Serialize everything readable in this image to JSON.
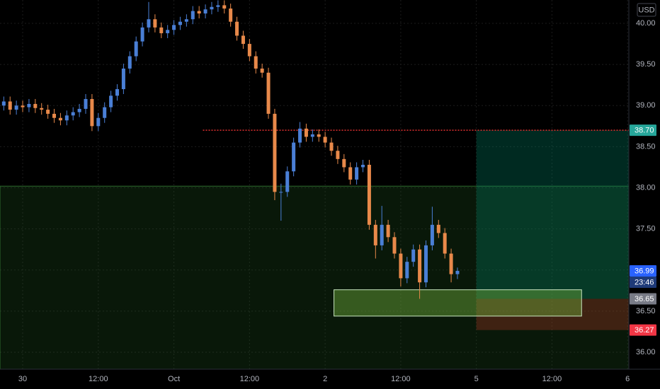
{
  "chart_data": {
    "type": "candlestick",
    "currency": "USD",
    "x": [
      -3,
      -2,
      -1,
      0,
      1,
      2,
      3,
      4,
      5,
      6,
      7,
      8,
      9,
      10,
      11,
      12,
      13,
      14,
      15,
      16,
      17,
      18,
      19,
      20,
      21,
      22,
      23,
      24,
      25,
      26,
      27,
      28,
      29,
      30,
      31,
      32,
      33,
      34,
      35,
      36,
      37,
      38,
      39,
      40,
      41,
      42,
      43,
      44,
      45,
      46,
      47,
      48,
      49,
      50,
      51,
      52,
      53,
      54,
      55,
      56,
      57,
      58,
      59,
      60,
      61,
      62,
      63,
      64,
      65,
      66,
      67,
      68,
      69
    ],
    "open": [
      39.0,
      39.05,
      38.95,
      39.0,
      38.98,
      39.02,
      38.97,
      38.95,
      38.9,
      38.85,
      38.82,
      38.88,
      38.92,
      38.96,
      39.08,
      38.75,
      38.85,
      38.98,
      39.12,
      39.2,
      39.45,
      39.6,
      39.78,
      39.95,
      40.05,
      39.95,
      39.88,
      39.92,
      39.98,
      40.02,
      40.05,
      40.15,
      40.12,
      40.17,
      40.2,
      40.22,
      40.18,
      40.02,
      39.85,
      39.75,
      39.6,
      39.45,
      39.4,
      38.9,
      37.95,
      37.95,
      38.2,
      38.55,
      38.72,
      38.62,
      38.65,
      38.62,
      38.55,
      38.45,
      38.35,
      38.25,
      38.1,
      38.25,
      38.28,
      37.55,
      37.3,
      37.55,
      37.4,
      37.2,
      36.9,
      37.1,
      37.25,
      36.85,
      37.3,
      37.55,
      37.45,
      37.2,
      36.95
    ],
    "high": [
      39.11,
      39.11,
      39.06,
      39.06,
      39.08,
      39.08,
      39.03,
      39.01,
      38.96,
      38.91,
      38.94,
      38.98,
      39.02,
      39.14,
      39.14,
      38.91,
      39.04,
      39.18,
      39.26,
      39.51,
      39.66,
      39.84,
      40.01,
      40.26,
      40.11,
      40.01,
      39.98,
      40.04,
      40.08,
      40.11,
      40.21,
      40.21,
      40.23,
      40.26,
      40.28,
      40.28,
      40.24,
      40.08,
      39.91,
      39.81,
      39.66,
      39.51,
      39.46,
      38.96,
      38.05,
      38.26,
      38.61,
      38.8,
      38.78,
      38.71,
      38.71,
      38.68,
      38.61,
      38.51,
      38.41,
      38.31,
      38.31,
      38.34,
      38.34,
      37.61,
      37.78,
      37.61,
      37.46,
      37.26,
      37.16,
      37.31,
      37.31,
      37.36,
      37.77,
      37.61,
      37.51,
      37.26,
      37.03
    ],
    "low": [
      38.94,
      38.89,
      38.89,
      38.92,
      38.92,
      38.91,
      38.89,
      38.84,
      38.79,
      38.76,
      38.76,
      38.82,
      38.86,
      38.9,
      38.69,
      38.69,
      38.79,
      38.92,
      39.06,
      39.14,
      39.39,
      39.54,
      39.72,
      39.89,
      39.89,
      39.82,
      39.82,
      39.86,
      39.92,
      39.96,
      39.99,
      40.06,
      40.06,
      40.11,
      40.14,
      40.12,
      39.96,
      39.79,
      39.69,
      39.54,
      39.39,
      39.34,
      38.84,
      37.85,
      37.6,
      37.89,
      38.14,
      38.49,
      38.56,
      38.56,
      38.56,
      38.49,
      38.39,
      38.29,
      38.19,
      38.04,
      38.04,
      38.19,
      37.49,
      37.14,
      37.24,
      37.34,
      37.14,
      36.8,
      36.84,
      37.04,
      36.65,
      36.79,
      37.24,
      37.39,
      37.14,
      36.85,
      36.89
    ],
    "close": [
      39.05,
      38.95,
      39.0,
      38.98,
      39.02,
      38.97,
      38.95,
      38.9,
      38.85,
      38.82,
      38.88,
      38.92,
      38.96,
      39.08,
      38.75,
      38.85,
      38.98,
      39.12,
      39.2,
      39.45,
      39.6,
      39.78,
      39.95,
      40.05,
      39.95,
      39.88,
      39.92,
      39.98,
      40.02,
      40.05,
      40.15,
      40.12,
      40.17,
      40.2,
      40.22,
      40.18,
      40.02,
      39.85,
      39.75,
      39.6,
      39.45,
      39.4,
      38.9,
      37.95,
      37.95,
      38.2,
      38.55,
      38.72,
      38.62,
      38.65,
      38.62,
      38.55,
      38.45,
      38.35,
      38.25,
      38.1,
      38.25,
      38.28,
      37.55,
      37.3,
      37.55,
      37.4,
      37.2,
      36.9,
      37.1,
      37.25,
      36.85,
      37.3,
      37.55,
      37.45,
      37.2,
      36.95,
      36.99
    ],
    "up_color": "#4a7fd6",
    "down_color": "#e8894a",
    "xlim": [
      -3.6,
      96.2
    ],
    "ylim": [
      35.794,
      40.284
    ],
    "xticks": [
      {
        "value": 0,
        "label": "30"
      },
      {
        "value": 12,
        "label": "12:00"
      },
      {
        "value": 24,
        "label": "Oct"
      },
      {
        "value": 36,
        "label": "12:00"
      },
      {
        "value": 48,
        "label": "2"
      },
      {
        "value": 60,
        "label": "12:00"
      },
      {
        "value": 72,
        "label": "5"
      },
      {
        "value": 84,
        "label": "12:00"
      },
      {
        "value": 96,
        "label": "6"
      }
    ],
    "yticks": [
      {
        "value": 36,
        "label": "36.00"
      },
      {
        "value": 36.5,
        "label": "36.50"
      },
      {
        "value": 37,
        "label": "37.00"
      },
      {
        "value": 37.5,
        "label": "37.50"
      },
      {
        "value": 38,
        "label": "38.00"
      },
      {
        "value": 38.5,
        "label": "38.50"
      },
      {
        "value": 39,
        "label": "39.00"
      },
      {
        "value": 39.5,
        "label": "39.50"
      },
      {
        "value": 40,
        "label": "40.00"
      }
    ],
    "grid": true,
    "zones": [
      {
        "x": [
          -3.6,
          96.2
        ],
        "y": [
          35.794,
          38.02
        ],
        "color": "rgba(40,110,40,0.22)",
        "border": "#2e6b2e"
      },
      {
        "x": [
          72,
          96.2
        ],
        "y": [
          36.65,
          38.7
        ],
        "color": "rgba(0,140,110,0.3)",
        "border": "none"
      },
      {
        "x": [
          72,
          96.2
        ],
        "y": [
          36.27,
          36.65
        ],
        "color": "rgba(190,60,40,0.3)",
        "border": "none"
      },
      {
        "x": [
          49.4,
          88.7
        ],
        "y": [
          36.44,
          36.76
        ],
        "color": "rgba(110,170,60,0.45)",
        "border": "#c9e6c0"
      }
    ],
    "hline": {
      "x": [
        28.6,
        96.2
      ],
      "y": 38.7,
      "color": "#e03030"
    },
    "price_labels": [
      {
        "value": 38.7,
        "label": "38.70",
        "color": "#26a69a"
      },
      {
        "value": 36.99,
        "label": "36.99",
        "color": "#2962ff"
      },
      {
        "value": 36.65,
        "label": "36.65",
        "color": "#787b86"
      },
      {
        "value": 36.27,
        "label": "36.27",
        "color": "#f23645"
      }
    ],
    "countdown": "23:46"
  }
}
